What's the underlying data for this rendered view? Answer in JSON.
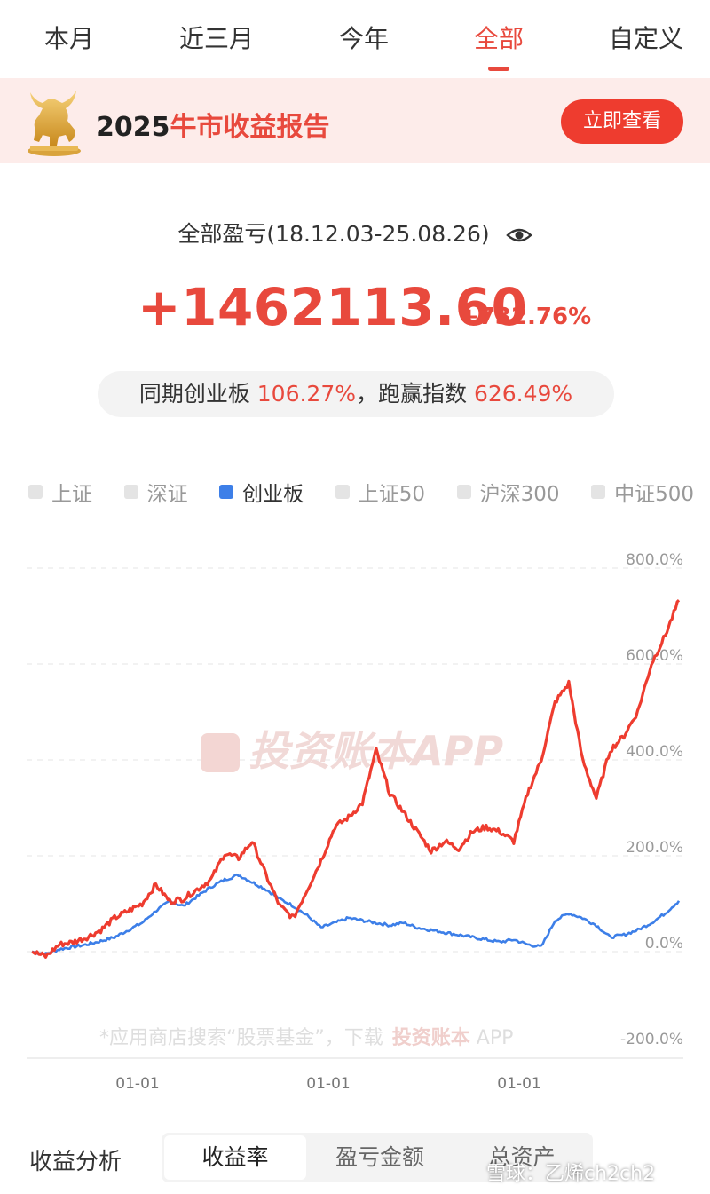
{
  "tabs": [
    {
      "label": "本月"
    },
    {
      "label": "近三月"
    },
    {
      "label": "今年"
    },
    {
      "label": "全部",
      "active": true
    },
    {
      "label": "自定义"
    }
  ],
  "banner": {
    "title_year": "2025",
    "title_rest": "牛市收益报告",
    "button": "立即查看",
    "icon": "golden-bull-icon"
  },
  "summary": {
    "range_label": "全部盈亏(18.12.03-25.08.26)",
    "eye_icon": "eye-icon",
    "amount": "+1462113.60",
    "pct": "+732.76%",
    "compare_prefix": "同期创业板 ",
    "compare_index_pct": "106.27%",
    "compare_mid": "，跑赢指数 ",
    "compare_excess_pct": "626.49%"
  },
  "legend": [
    {
      "label": "上证",
      "active": false
    },
    {
      "label": "深证",
      "active": false
    },
    {
      "label": "创业板",
      "active": true
    },
    {
      "label": "上证50",
      "active": false
    },
    {
      "label": "沪深300",
      "active": false
    },
    {
      "label": "中证500",
      "active": false
    }
  ],
  "colors": {
    "accent": "#e8493d",
    "index_line": "#3d7fe8",
    "portfolio_line": "#ee3c2f"
  },
  "chart_data": {
    "type": "line",
    "y_ticks": [
      "800.0%",
      "600.0%",
      "400.0%",
      "200.0%",
      "0.0%",
      "-200.0%"
    ],
    "ylim": [
      -200,
      800
    ],
    "x_ticks": [
      "01-01",
      "01-01",
      "01-01"
    ],
    "grid": true,
    "watermark": "投资账本APP",
    "footer_watermark_prefix": "*应用商店搜索“股票基金”，下载",
    "footer_watermark_brand": "投资账本",
    "footer_watermark_suffix": " APP",
    "series": [
      {
        "name": "创业板",
        "color": "#3d7fe8",
        "values": [
          0,
          -5,
          5,
          10,
          15,
          22,
          30,
          45,
          60,
          85,
          105,
          95,
          115,
          135,
          150,
          160,
          145,
          130,
          110,
          95,
          75,
          50,
          60,
          70,
          65,
          60,
          55,
          60,
          50,
          45,
          40,
          35,
          30,
          25,
          20,
          25,
          15,
          10,
          65,
          80,
          70,
          55,
          30,
          35,
          45,
          60,
          80,
          106
        ]
      },
      {
        "name": "",
        "color": "#ee3c2f",
        "values": [
          0,
          -10,
          15,
          20,
          30,
          45,
          70,
          85,
          100,
          140,
          105,
          110,
          130,
          150,
          205,
          195,
          230,
          160,
          95,
          70,
          130,
          190,
          260,
          280,
          310,
          420,
          330,
          290,
          250,
          210,
          230,
          215,
          250,
          260,
          250,
          230,
          330,
          400,
          520,
          560,
          400,
          320,
          420,
          450,
          500,
          600,
          660,
          733
        ]
      }
    ]
  },
  "bottom": {
    "label": "收益分析",
    "segments": [
      {
        "label": "收益率",
        "active": true
      },
      {
        "label": "盈亏金额",
        "active": false
      },
      {
        "label": "总资产",
        "active": false
      }
    ],
    "watermark": "雪球：乙烯ch2ch2"
  }
}
